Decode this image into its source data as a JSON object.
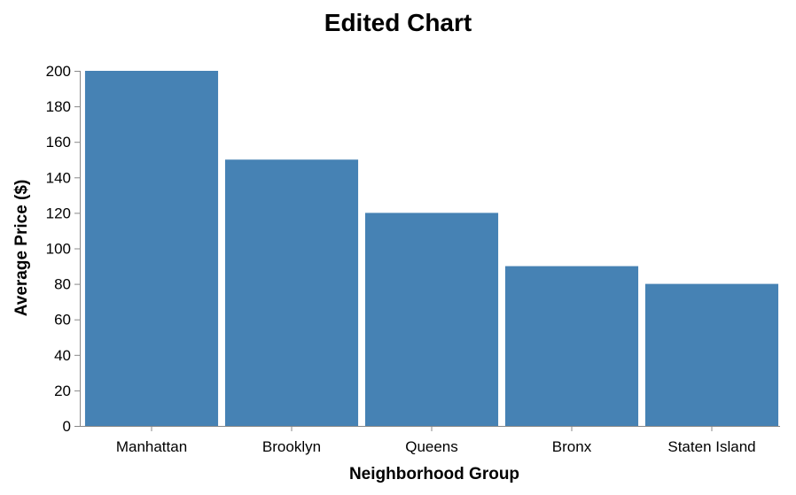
{
  "chart_data": {
    "type": "bar",
    "title": "Edited Chart",
    "xlabel": "Neighborhood Group",
    "ylabel": "Average Price ($)",
    "categories": [
      "Manhattan",
      "Brooklyn",
      "Queens",
      "Bronx",
      "Staten Island"
    ],
    "values": [
      200,
      150,
      120,
      90,
      80
    ],
    "ylim": [
      0,
      200
    ],
    "yticks": [
      0,
      20,
      40,
      60,
      80,
      100,
      120,
      140,
      160,
      180,
      200
    ],
    "grid": false,
    "legend": "none",
    "bar_color": "#4682b4"
  }
}
